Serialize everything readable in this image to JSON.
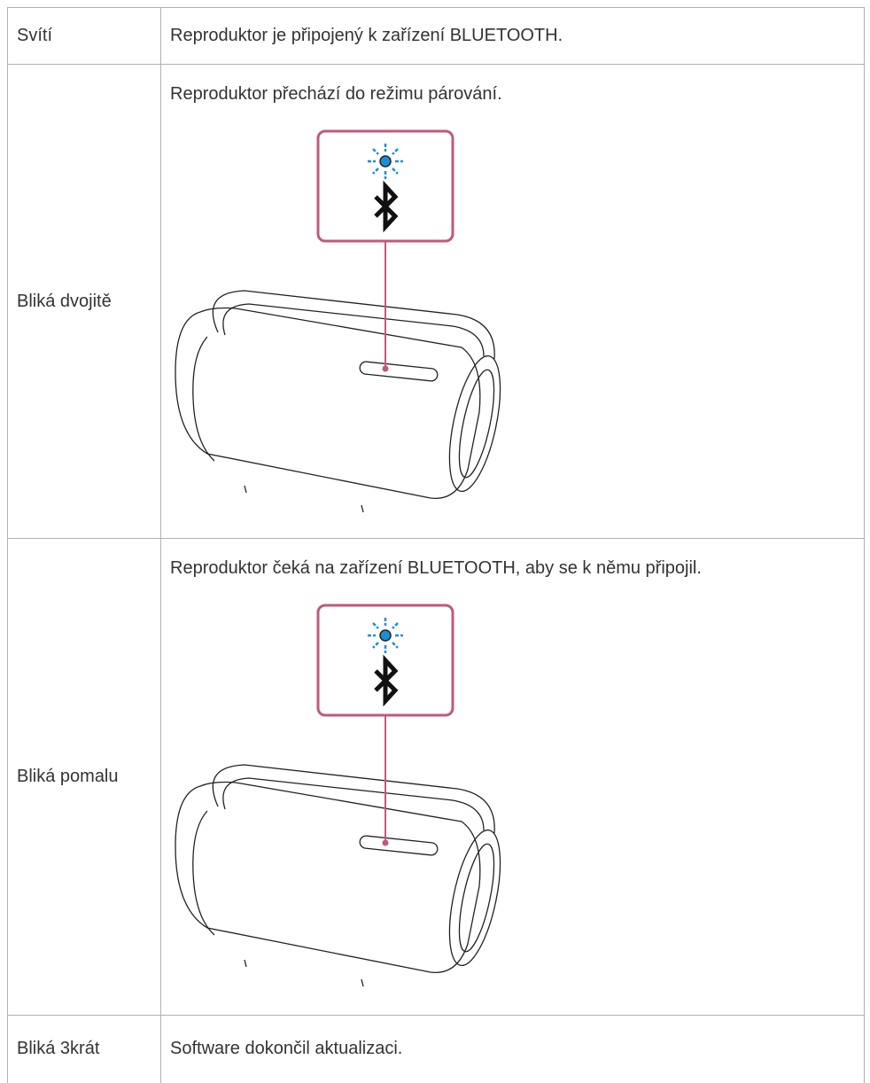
{
  "table": {
    "rows": [
      [
        "Svítí",
        "Reproduktor je připojený k zařízení BLUETOOTH."
      ],
      [
        "Bliká dvojitě",
        "Reproduktor přechází do režimu párování."
      ],
      [
        "Bliká pomalu",
        "Reproduktor čeká na zařízení BLUETOOTH, aby se k němu připojil."
      ],
      [
        "Bliká 3krát",
        "Software dokončil aktualizaci."
      ]
    ]
  }
}
